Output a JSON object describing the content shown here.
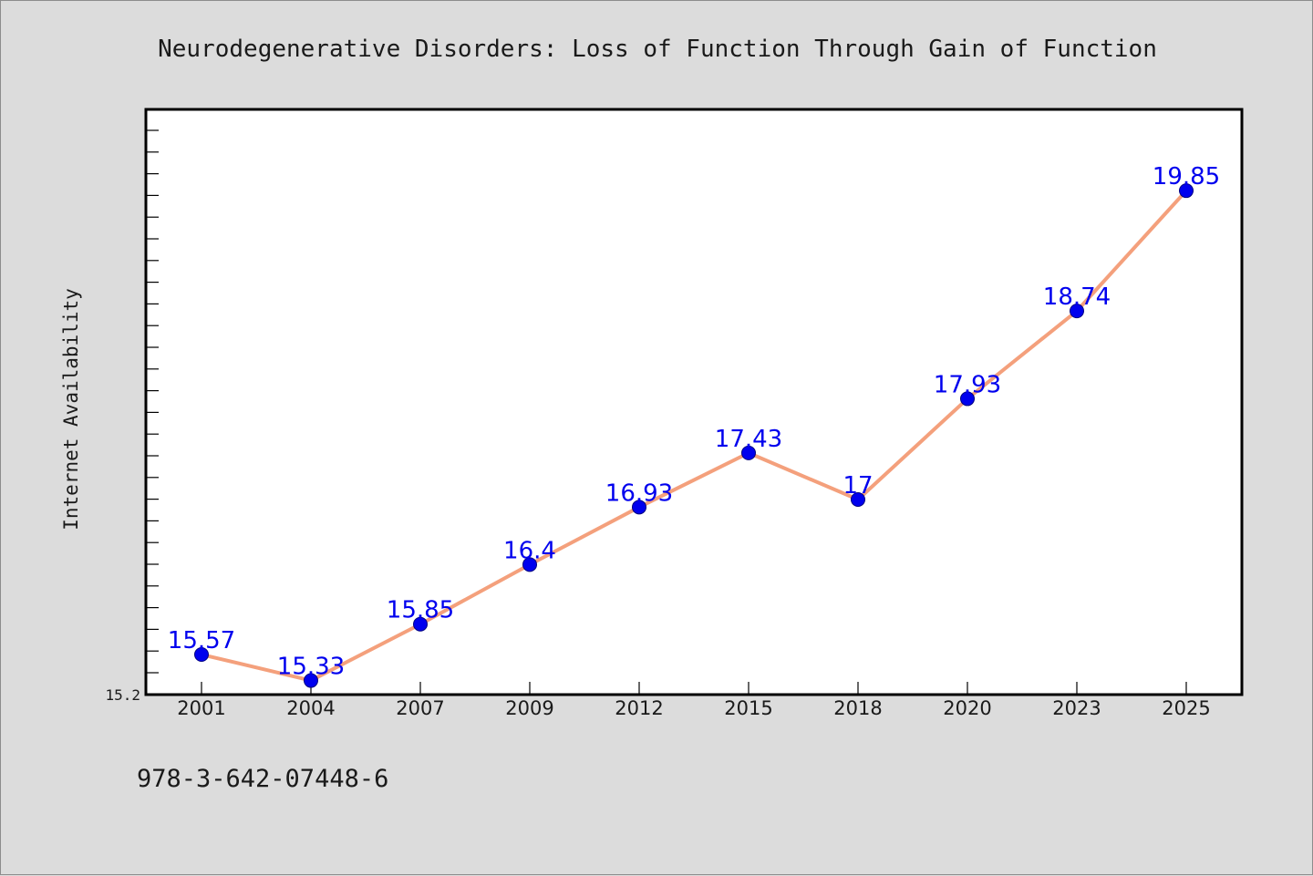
{
  "chart_data": {
    "type": "line",
    "title": "Neurodegenerative Disorders: Loss of Function Through Gain of Function",
    "xlabel": "",
    "ylabel": "Internet Availability",
    "categories": [
      "2001",
      "2004",
      "2007",
      "2009",
      "2012",
      "2015",
      "2018",
      "2020",
      "2023",
      "2025"
    ],
    "series": [
      {
        "values": [
          15.57,
          15.33,
          15.85,
          16.4,
          16.93,
          17.43,
          17,
          17.93,
          18.74,
          19.85
        ],
        "labels": [
          "15.57",
          "15.33",
          "15.85",
          "16.4",
          "16.93",
          "17.43",
          "17",
          "17.93",
          "18.74",
          "19.85"
        ]
      }
    ],
    "yticks": [
      "15.2"
    ],
    "ylim": [
      15.2,
      20.6
    ],
    "grid": false,
    "colors": {
      "line": "#f4a07c",
      "marker": "#0000ee",
      "label": "#0000ee"
    }
  },
  "footer": {
    "text": "978-3-642-07448-6"
  }
}
